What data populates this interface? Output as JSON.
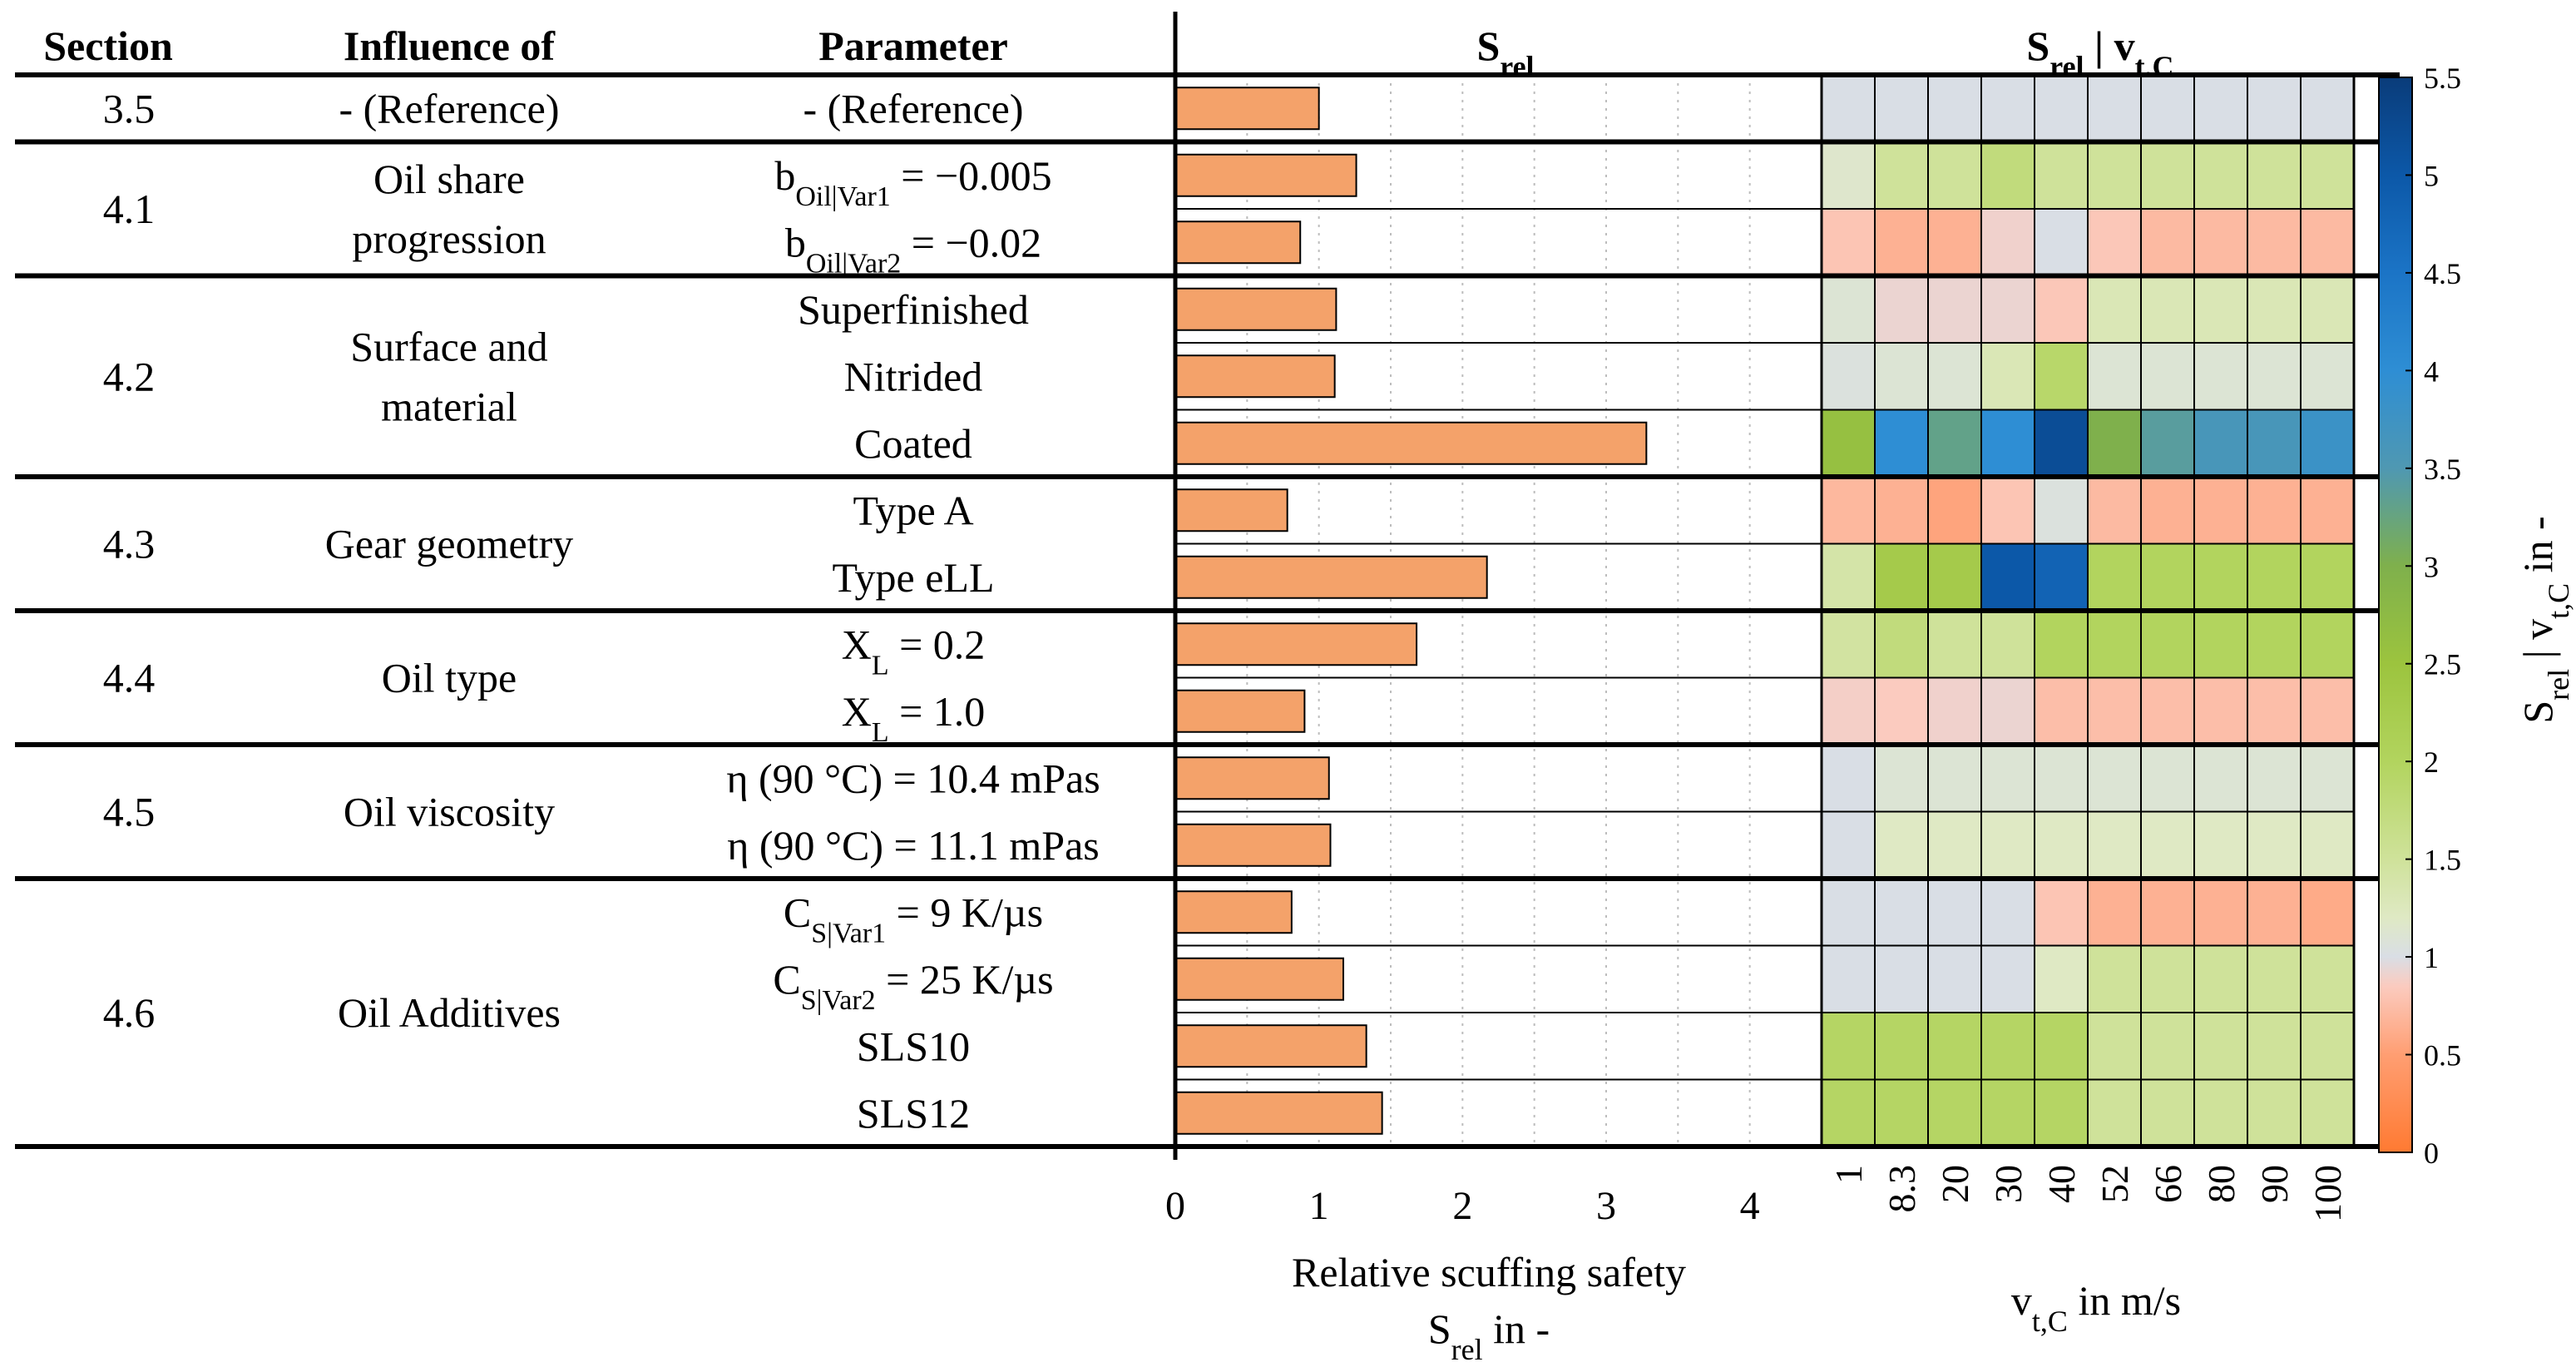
{
  "table": {
    "headers": {
      "section": "Section",
      "influence": "Influence of",
      "parameter": "Parameter"
    },
    "groups": [
      {
        "section": "3.5",
        "influence": [
          "- (Reference)"
        ]
      },
      {
        "section": "4.1",
        "influence": [
          "Oil share",
          "progression"
        ]
      },
      {
        "section": "4.2",
        "influence": [
          "Surface and",
          "material"
        ]
      },
      {
        "section": "4.3",
        "influence": [
          "Gear geometry"
        ]
      },
      {
        "section": "4.4",
        "influence": [
          "Oil type"
        ]
      },
      {
        "section": "4.5",
        "influence": [
          "Oil viscosity"
        ]
      },
      {
        "section": "4.6",
        "influence": [
          "Oil Additives"
        ]
      }
    ],
    "rows": [
      {
        "group": 0,
        "param": [
          {
            "t": "- (Reference)"
          }
        ]
      },
      {
        "group": 1,
        "param": [
          {
            "t": "b"
          },
          {
            "t": "Oil|Var1",
            "sub": true
          },
          {
            "t": " = −0.005"
          }
        ]
      },
      {
        "group": 1,
        "param": [
          {
            "t": "b"
          },
          {
            "t": "Oil|Var2",
            "sub": true
          },
          {
            "t": " = −0.02"
          }
        ]
      },
      {
        "group": 2,
        "param": [
          {
            "t": "Superfinished"
          }
        ]
      },
      {
        "group": 2,
        "param": [
          {
            "t": "Nitrided"
          }
        ]
      },
      {
        "group": 2,
        "param": [
          {
            "t": "Coated"
          }
        ]
      },
      {
        "group": 3,
        "param": [
          {
            "t": "Type A"
          }
        ]
      },
      {
        "group": 3,
        "param": [
          {
            "t": "Type eLL"
          }
        ]
      },
      {
        "group": 4,
        "param": [
          {
            "t": "X"
          },
          {
            "t": "L",
            "sub": true
          },
          {
            "t": " = 0.2"
          }
        ]
      },
      {
        "group": 4,
        "param": [
          {
            "t": "X"
          },
          {
            "t": "L",
            "sub": true
          },
          {
            "t": " = 1.0"
          }
        ]
      },
      {
        "group": 5,
        "param": [
          {
            "t": "η (90 °C) = 10.4 mPas"
          }
        ]
      },
      {
        "group": 5,
        "param": [
          {
            "t": "η (90 °C) = 11.1 mPas"
          }
        ]
      },
      {
        "group": 6,
        "param": [
          {
            "t": "C"
          },
          {
            "t": "S|Var1",
            "sub": true
          },
          {
            "t": " = 9 K/µs"
          }
        ]
      },
      {
        "group": 6,
        "param": [
          {
            "t": "C"
          },
          {
            "t": "S|Var2",
            "sub": true
          },
          {
            "t": " = 25 K/µs"
          }
        ]
      },
      {
        "group": 6,
        "param": [
          {
            "t": "SLS10"
          }
        ]
      },
      {
        "group": 6,
        "param": [
          {
            "t": "SLS12"
          }
        ]
      }
    ]
  },
  "chart_data": [
    {
      "type": "bar",
      "orientation": "horizontal",
      "title": [
        {
          "t": "S"
        },
        {
          "t": "rel",
          "sub": true
        }
      ],
      "xlabel_line1": "Relative scuffing safety",
      "xlabel_line2": [
        {
          "t": "S"
        },
        {
          "t": "rel",
          "sub": true
        },
        {
          "t": " in -"
        }
      ],
      "xlim": [
        0,
        4.5
      ],
      "xticks": [
        0,
        1,
        2,
        3,
        4
      ],
      "minor_grid": [
        0.5,
        1,
        1.5,
        2,
        2.5,
        3,
        3.5,
        4
      ],
      "bar_color": "#f4a26a",
      "values": [
        1.0,
        1.26,
        0.87,
        1.12,
        1.11,
        3.28,
        0.78,
        2.17,
        1.68,
        0.9,
        1.07,
        1.08,
        0.81,
        1.17,
        1.33,
        1.44
      ]
    },
    {
      "type": "heatmap",
      "title": [
        {
          "t": "S"
        },
        {
          "t": "rel",
          "sub": true
        },
        {
          "t": " | "
        },
        {
          "t": "v"
        },
        {
          "t": "t,C",
          "sub": true
        }
      ],
      "x_categories": [
        "1",
        "8.3",
        "20",
        "30",
        "40",
        "52",
        "66",
        "80",
        "90",
        "100"
      ],
      "xlabel": [
        {
          "t": "v"
        },
        {
          "t": "t,C",
          "sub": true
        },
        {
          "t": " in m/s"
        }
      ],
      "values": [
        [
          1.0,
          1.0,
          1.0,
          1.0,
          1.0,
          1.0,
          1.0,
          1.0,
          1.0,
          1.0
        ],
        [
          1.15,
          1.5,
          1.5,
          1.75,
          1.5,
          1.5,
          1.5,
          1.5,
          1.5,
          1.5
        ],
        [
          0.8,
          0.65,
          0.65,
          0.9,
          1.0,
          0.82,
          0.72,
          0.72,
          0.72,
          0.72
        ],
        [
          1.1,
          0.92,
          0.92,
          0.92,
          0.82,
          1.3,
          1.3,
          1.3,
          1.3,
          1.3
        ],
        [
          1.05,
          1.1,
          1.1,
          1.3,
          1.9,
          1.1,
          1.1,
          1.1,
          1.1,
          1.1
        ],
        [
          2.6,
          4.0,
          3.3,
          4.0,
          5.2,
          3.0,
          3.4,
          3.6,
          3.6,
          3.8
        ],
        [
          0.7,
          0.65,
          0.55,
          0.8,
          1.05,
          0.72,
          0.65,
          0.65,
          0.65,
          0.65
        ],
        [
          1.4,
          2.3,
          2.3,
          5.0,
          4.8,
          2.0,
          2.0,
          2.0,
          2.0,
          2.0
        ],
        [
          1.45,
          1.75,
          1.5,
          1.5,
          2.0,
          2.0,
          2.0,
          2.0,
          2.0,
          2.0
        ],
        [
          0.88,
          0.85,
          0.9,
          0.92,
          0.75,
          0.75,
          0.75,
          0.75,
          0.75,
          0.75
        ],
        [
          1.0,
          1.1,
          1.1,
          1.1,
          1.1,
          1.1,
          1.1,
          1.1,
          1.1,
          1.1
        ],
        [
          1.0,
          1.2,
          1.2,
          1.2,
          1.2,
          1.2,
          1.2,
          1.2,
          1.2,
          1.2
        ],
        [
          1.0,
          1.0,
          1.0,
          1.0,
          0.8,
          0.65,
          0.65,
          0.65,
          0.65,
          0.6
        ],
        [
          1.0,
          1.0,
          1.0,
          1.0,
          1.2,
          1.5,
          1.5,
          1.5,
          1.5,
          1.5
        ],
        [
          1.95,
          1.95,
          1.95,
          1.95,
          1.95,
          1.5,
          1.5,
          1.5,
          1.5,
          1.5
        ],
        [
          1.95,
          1.95,
          1.95,
          1.95,
          1.95,
          1.5,
          1.5,
          1.5,
          1.5,
          1.5
        ]
      ],
      "colorbar": {
        "label": [
          {
            "t": "S"
          },
          {
            "t": "rel",
            "sub": true
          },
          {
            "t": " | v"
          },
          {
            "t": "t,C",
            "sub": true
          },
          {
            "t": " in -"
          }
        ],
        "min": 0,
        "max": 5.5,
        "ticks": [
          "0",
          "0.5",
          "1",
          "1.5",
          "2",
          "2.5",
          "3",
          "3.5",
          "4",
          "4.5",
          "5",
          "5.5"
        ],
        "stops": [
          {
            "v": 0,
            "c": "#ff7a32"
          },
          {
            "v": 0.5,
            "c": "#ff9e72"
          },
          {
            "v": 0.85,
            "c": "#fbcbbf"
          },
          {
            "v": 1.0,
            "c": "#d9dee5"
          },
          {
            "v": 1.2,
            "c": "#dfe9c4"
          },
          {
            "v": 1.5,
            "c": "#cfe29a"
          },
          {
            "v": 2.0,
            "c": "#b2d45e"
          },
          {
            "v": 2.5,
            "c": "#9cc43e"
          },
          {
            "v": 3.0,
            "c": "#7fb04c"
          },
          {
            "v": 3.5,
            "c": "#4f98b2"
          },
          {
            "v": 4.0,
            "c": "#2e8ed4"
          },
          {
            "v": 4.5,
            "c": "#1b74c6"
          },
          {
            "v": 5.0,
            "c": "#0c58a8"
          },
          {
            "v": 5.5,
            "c": "#0a3c7a"
          }
        ]
      }
    }
  ]
}
